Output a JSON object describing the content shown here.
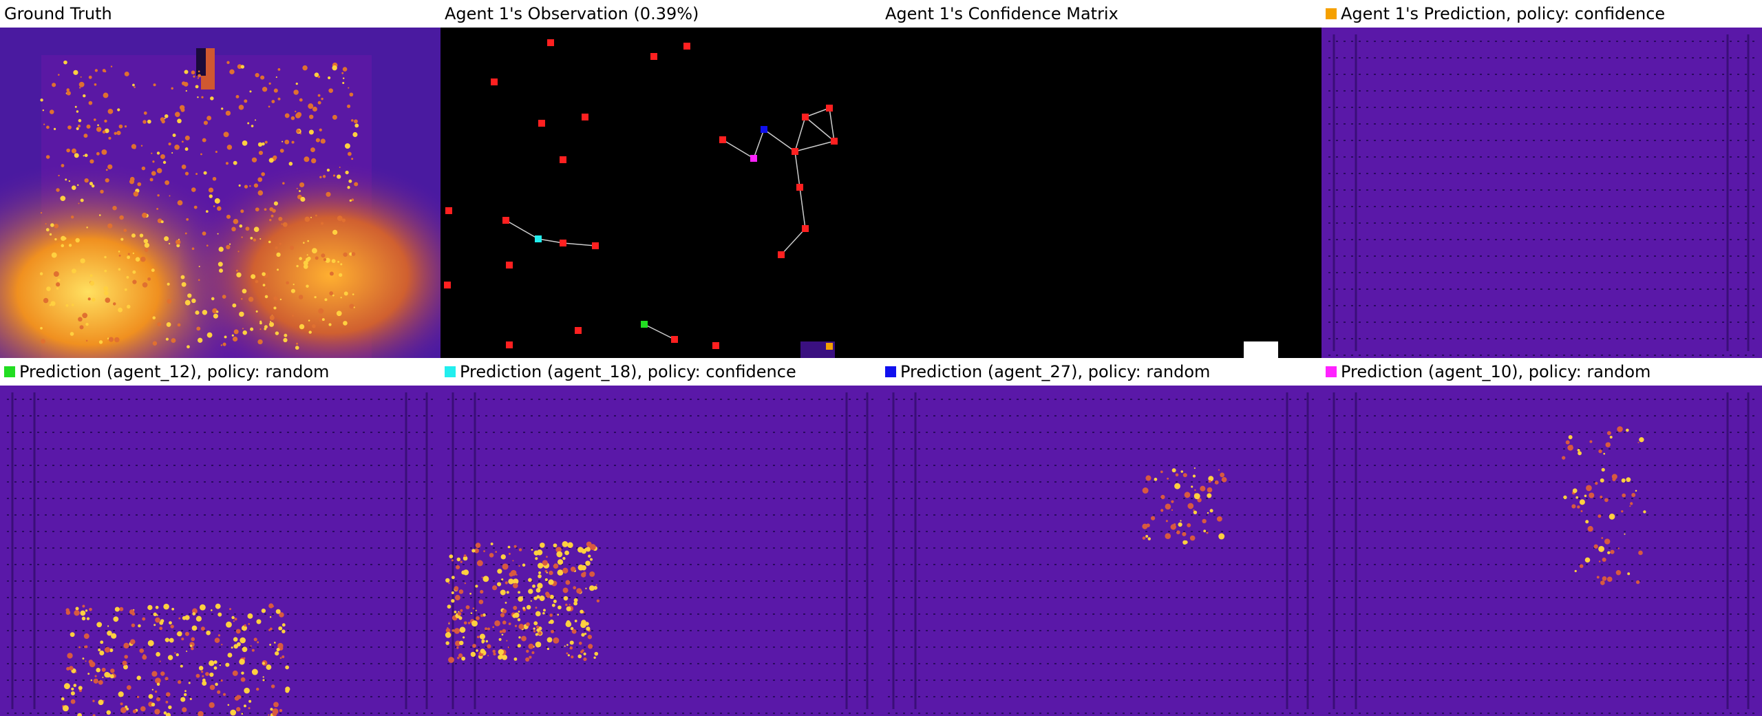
{
  "panels": [
    {
      "title": "Ground Truth",
      "swatch": null
    },
    {
      "title": "Agent 1's Observation (0.39%)",
      "swatch": null
    },
    {
      "title": "Agent 1's Confidence Matrix",
      "swatch": null
    },
    {
      "title": "Agent 1's Prediction, policy: confidence",
      "swatch": "#f5a000"
    },
    {
      "title": "Prediction (agent_12), policy: random",
      "swatch": "#22dd22"
    },
    {
      "title": "Prediction (agent_18), policy: confidence",
      "swatch": "#22eeee"
    },
    {
      "title": "Prediction (agent_27), policy: random",
      "swatch": "#1010ee"
    },
    {
      "title": "Prediction (agent_10), policy: random",
      "swatch": "#ff22ff"
    }
  ],
  "colors": {
    "plasma_dark": "#2a0a7a",
    "plasma_mid": "#5c18a8",
    "plasma_hot": "#f08a20",
    "plasma_bright": "#ffe040",
    "observation_bg": "#000000",
    "agent_marker": "#ff2020",
    "edge": "#cccccc"
  }
}
